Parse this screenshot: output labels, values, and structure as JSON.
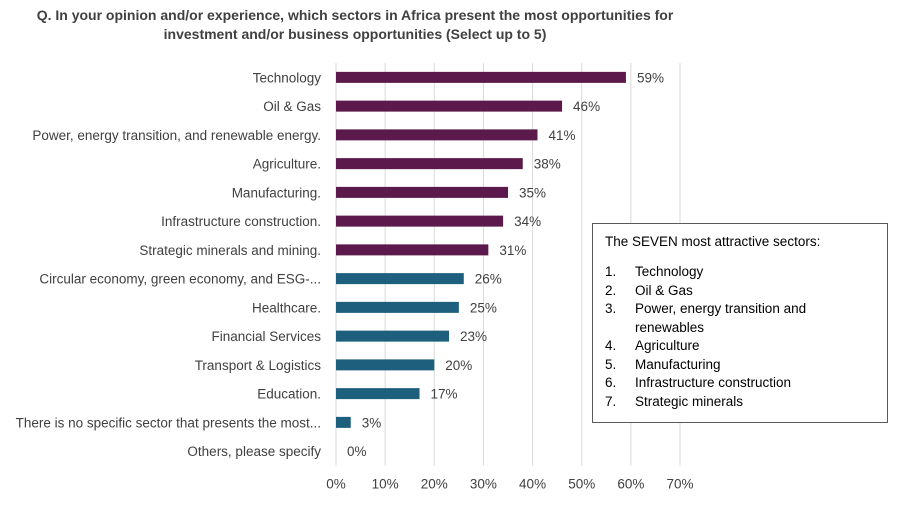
{
  "chart_data": {
    "type": "bar",
    "orientation": "horizontal",
    "title": "Q. In your opinion and/or experience, which sectors in Africa present the most opportunities for investment and/or business opportunities (Select up to 5)",
    "categories": [
      "Technology",
      "Oil & Gas",
      "Power, energy transition, and renewable energy.",
      "Agriculture.",
      "Manufacturing.",
      "Infrastructure construction.",
      "Strategic minerals and mining.",
      "Circular economy, green economy, and ESG-...",
      "Healthcare.",
      "Financial Services",
      "Transport & Logistics",
      "Education.",
      "There is no specific sector that presents the most...",
      "Others, please specify"
    ],
    "values": [
      59,
      46,
      41,
      38,
      35,
      34,
      31,
      26,
      25,
      23,
      20,
      17,
      3,
      0
    ],
    "value_labels": [
      "59%",
      "46%",
      "41%",
      "38%",
      "35%",
      "34%",
      "31%",
      "26%",
      "25%",
      "23%",
      "20%",
      "17%",
      "3%",
      "0%"
    ],
    "highlight_count": 7,
    "xlim": [
      0,
      70
    ],
    "xticks": [
      "0%",
      "10%",
      "20%",
      "30%",
      "40%",
      "50%",
      "60%",
      "70%"
    ],
    "grid": true,
    "colors": {
      "top": "#5b1a4b",
      "rest": "#1e5f7e",
      "grid": "#d9d9d9",
      "text": "#404040"
    }
  },
  "callout": {
    "heading": "The SEVEN most attractive sectors:",
    "items": [
      {
        "num": "1.",
        "label": "Technology"
      },
      {
        "num": "2.",
        "label": "Oil & Gas"
      },
      {
        "num": "3.",
        "label": "Power, energy transition and renewables"
      },
      {
        "num": "4.",
        "label": "Agriculture"
      },
      {
        "num": "5.",
        "label": "Manufacturing"
      },
      {
        "num": "6.",
        "label": "Infrastructure construction"
      },
      {
        "num": "7.",
        "label": "Strategic minerals"
      }
    ]
  }
}
